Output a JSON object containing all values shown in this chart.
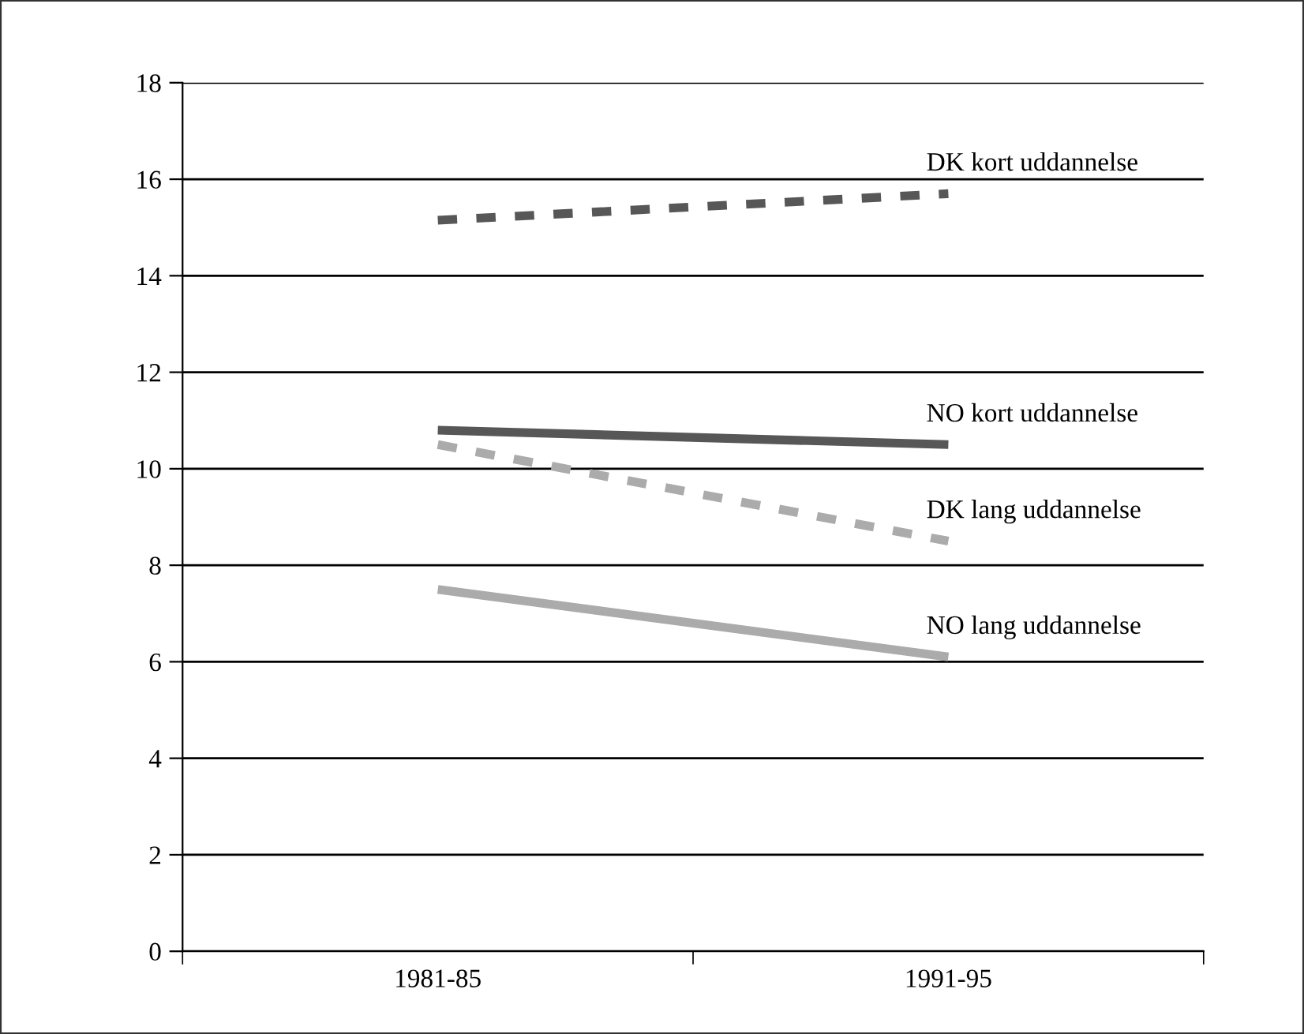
{
  "chart_data": {
    "type": "line",
    "categories": [
      "1981-85",
      "1991-95"
    ],
    "series": [
      {
        "name": "DK kort uddannelse",
        "color": "#575757",
        "line_style": "dashed",
        "values": [
          15.15,
          15.7
        ]
      },
      {
        "name": "NO kort uddannelse",
        "color": "#575757",
        "line_style": "solid",
        "values": [
          10.8,
          10.5
        ]
      },
      {
        "name": "DK lang uddannelse",
        "color": "#ababab",
        "line_style": "dashed",
        "values": [
          10.5,
          8.5
        ]
      },
      {
        "name": "NO lang uddannelse",
        "color": "#ababab",
        "line_style": "solid",
        "values": [
          7.5,
          6.1
        ]
      }
    ],
    "ylim": [
      0,
      18
    ],
    "yticks": [
      0,
      2,
      4,
      6,
      8,
      10,
      12,
      14,
      16,
      18
    ],
    "grid": "y",
    "marker": "none",
    "legend": false
  }
}
